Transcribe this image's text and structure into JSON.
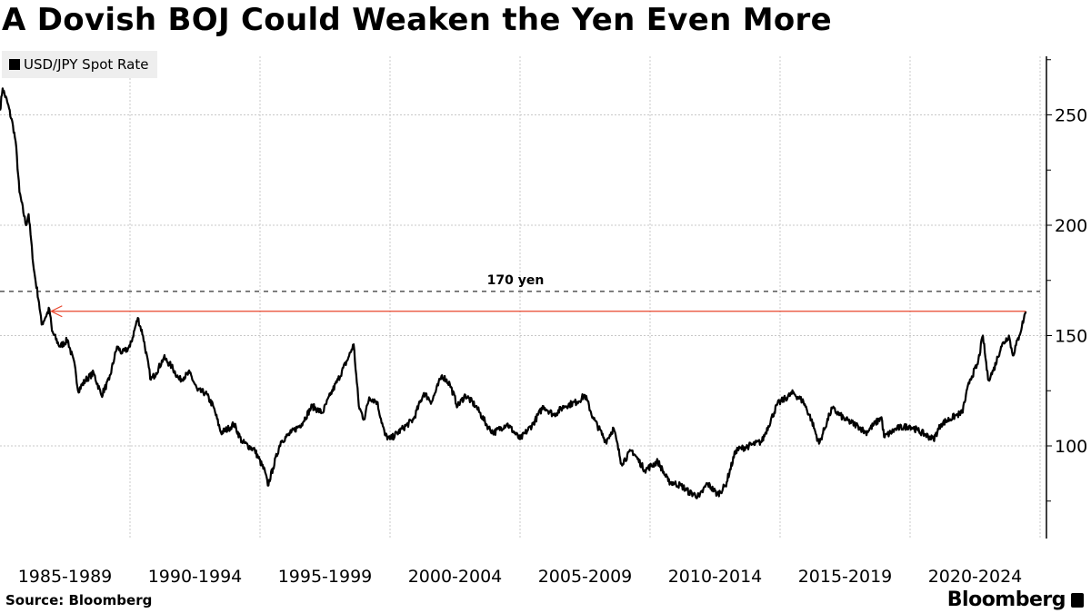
{
  "title": "A Dovish BOJ Could Weaken the Yen Even More",
  "source": "Source: Bloomberg",
  "brand": "Bloomberg",
  "chart_data": {
    "type": "line",
    "title": "A Dovish BOJ Could Weaken the Yen Even More",
    "legend": {
      "placement": "top-left",
      "entries": [
        "USD/JPY Spot Rate"
      ]
    },
    "x_categories": [
      "1985-1989",
      "1990-1994",
      "1995-1999",
      "2000-2004",
      "2005-2009",
      "2010-2014",
      "2015-2019",
      "2020-2024"
    ],
    "xlim": [
      1985,
      2025
    ],
    "y_ticks": [
      100,
      150,
      200,
      250
    ],
    "ylim": [
      58,
      277
    ],
    "y_axis_side": "right",
    "grid": true,
    "annotations": [
      {
        "type": "hline-dashed",
        "value": 170,
        "label": "170 yen"
      },
      {
        "type": "arrow",
        "value": 161,
        "from_year": 2024.45,
        "to_year": 1986.9,
        "color": "#e8452c"
      }
    ],
    "series": [
      {
        "name": "USD/JPY Spot Rate",
        "color": "#000000",
        "points": [
          [
            1985.0,
            252
          ],
          [
            1985.1,
            262
          ],
          [
            1985.3,
            255
          ],
          [
            1985.5,
            245
          ],
          [
            1985.6,
            238
          ],
          [
            1985.75,
            215
          ],
          [
            1986.0,
            200
          ],
          [
            1986.1,
            205
          ],
          [
            1986.3,
            180
          ],
          [
            1986.5,
            165
          ],
          [
            1986.6,
            155
          ],
          [
            1986.9,
            162
          ],
          [
            1987.0,
            152
          ],
          [
            1987.3,
            145
          ],
          [
            1987.6,
            148
          ],
          [
            1987.9,
            135
          ],
          [
            1988.0,
            125
          ],
          [
            1988.3,
            130
          ],
          [
            1988.6,
            133
          ],
          [
            1988.9,
            123
          ],
          [
            1989.2,
            130
          ],
          [
            1989.5,
            145
          ],
          [
            1989.7,
            142
          ],
          [
            1990.0,
            145
          ],
          [
            1990.3,
            158
          ],
          [
            1990.5,
            150
          ],
          [
            1990.8,
            130
          ],
          [
            1991.0,
            133
          ],
          [
            1991.3,
            140
          ],
          [
            1991.6,
            136
          ],
          [
            1991.9,
            130
          ],
          [
            1992.3,
            133
          ],
          [
            1992.6,
            125
          ],
          [
            1992.9,
            124
          ],
          [
            1993.2,
            118
          ],
          [
            1993.5,
            106
          ],
          [
            1993.8,
            108
          ],
          [
            1994.0,
            110
          ],
          [
            1994.3,
            102
          ],
          [
            1994.8,
            98
          ],
          [
            1995.2,
            88
          ],
          [
            1995.3,
            82
          ],
          [
            1995.5,
            90
          ],
          [
            1995.8,
            102
          ],
          [
            1996.2,
            106
          ],
          [
            1996.6,
            110
          ],
          [
            1997.0,
            118
          ],
          [
            1997.4,
            115
          ],
          [
            1997.7,
            123
          ],
          [
            1998.0,
            130
          ],
          [
            1998.4,
            140
          ],
          [
            1998.6,
            146
          ],
          [
            1998.8,
            118
          ],
          [
            1999.0,
            112
          ],
          [
            1999.2,
            122
          ],
          [
            1999.5,
            120
          ],
          [
            1999.8,
            105
          ],
          [
            2000.0,
            103
          ],
          [
            2000.5,
            108
          ],
          [
            2000.9,
            112
          ],
          [
            2001.3,
            124
          ],
          [
            2001.6,
            120
          ],
          [
            2002.0,
            132
          ],
          [
            2002.3,
            128
          ],
          [
            2002.6,
            118
          ],
          [
            2002.9,
            123
          ],
          [
            2003.3,
            118
          ],
          [
            2003.8,
            108
          ],
          [
            2004.0,
            106
          ],
          [
            2004.5,
            110
          ],
          [
            2005.0,
            103
          ],
          [
            2005.5,
            110
          ],
          [
            2005.9,
            118
          ],
          [
            2006.3,
            114
          ],
          [
            2006.7,
            118
          ],
          [
            2007.2,
            120
          ],
          [
            2007.5,
            123
          ],
          [
            2007.8,
            113
          ],
          [
            2008.3,
            102
          ],
          [
            2008.6,
            108
          ],
          [
            2008.9,
            92
          ],
          [
            2009.3,
            98
          ],
          [
            2009.8,
            89
          ],
          [
            2010.3,
            93
          ],
          [
            2010.7,
            84
          ],
          [
            2011.2,
            82
          ],
          [
            2011.5,
            79
          ],
          [
            2011.9,
            77
          ],
          [
            2012.2,
            83
          ],
          [
            2012.6,
            78
          ],
          [
            2012.9,
            82
          ],
          [
            2013.3,
            98
          ],
          [
            2013.8,
            100
          ],
          [
            2014.3,
            102
          ],
          [
            2014.9,
            119
          ],
          [
            2015.5,
            124
          ],
          [
            2015.9,
            120
          ],
          [
            2016.2,
            112
          ],
          [
            2016.5,
            101
          ],
          [
            2016.9,
            114
          ],
          [
            2017.0,
            117
          ],
          [
            2017.5,
            112
          ],
          [
            2018.0,
            109
          ],
          [
            2018.3,
            106
          ],
          [
            2018.9,
            113
          ],
          [
            2019.0,
            104
          ],
          [
            2019.5,
            108
          ],
          [
            2020.0,
            109
          ],
          [
            2020.3,
            107
          ],
          [
            2020.9,
            103
          ],
          [
            2021.2,
            110
          ],
          [
            2021.8,
            114
          ],
          [
            2022.0,
            115
          ],
          [
            2022.3,
            130
          ],
          [
            2022.6,
            137
          ],
          [
            2022.8,
            150
          ],
          [
            2023.0,
            130
          ],
          [
            2023.2,
            134
          ],
          [
            2023.5,
            145
          ],
          [
            2023.8,
            150
          ],
          [
            2023.95,
            141
          ],
          [
            2024.2,
            150
          ],
          [
            2024.45,
            161
          ]
        ]
      }
    ]
  }
}
